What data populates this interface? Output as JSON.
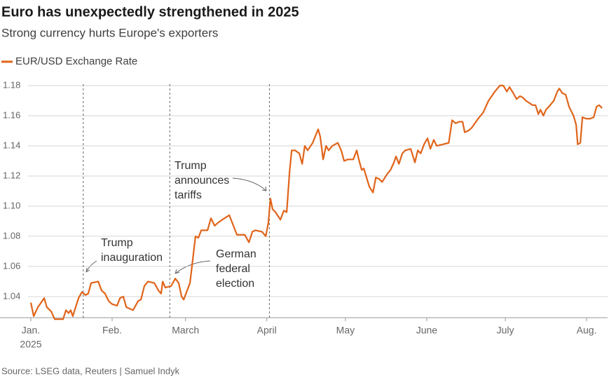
{
  "chart_data": {
    "type": "line",
    "title": "Euro has unexpectedly strengthened in 2025",
    "subtitle": "Strong currency hurts Europe's exporters",
    "source": "Source: LSEG data, Reuters | Samuel Indyk",
    "grid": true,
    "xlim": [
      0,
      220
    ],
    "ylim": [
      1.026,
      1.184
    ],
    "xticks": [
      {
        "value": 0,
        "label": [
          "Jan.",
          "2025"
        ]
      },
      {
        "value": 31,
        "label": [
          "Feb."
        ]
      },
      {
        "value": 59,
        "label": [
          "March"
        ]
      },
      {
        "value": 90,
        "label": [
          "April"
        ]
      },
      {
        "value": 120,
        "label": [
          "May"
        ]
      },
      {
        "value": 151,
        "label": [
          "June"
        ]
      },
      {
        "value": 181,
        "label": [
          "July"
        ]
      },
      {
        "value": 212,
        "label": [
          "Aug."
        ]
      }
    ],
    "yticks": [
      1.04,
      1.06,
      1.08,
      {
        "value": 1.1,
        "label": "1.10"
      },
      1.12,
      1.14,
      1.16,
      1.18
    ],
    "annotations": [
      {
        "x": 20,
        "text": [
          "Trump",
          "inauguration"
        ]
      },
      {
        "x": 53,
        "text": [
          "German",
          "federal",
          "election"
        ]
      },
      {
        "x": 91,
        "text": [
          "Trump",
          "announces",
          "tariffs"
        ]
      }
    ],
    "series": [
      {
        "name": "EUR/USD Exchange Rate",
        "color": "#e0641a",
        "x": [
          0,
          1.1,
          2.7,
          5.1,
          6.1,
          7.8,
          9.1,
          12.3,
          13.4,
          14.4,
          15.2,
          16,
          18.2,
          19.5,
          20.9,
          21.9,
          23,
          25.7,
          27,
          28.3,
          29.7,
          31,
          32.9,
          34,
          35.3,
          36.4,
          39,
          40.9,
          42,
          43.3,
          44.7,
          47.1,
          48.7,
          49.7,
          50.3,
          51.3,
          53.5,
          55.1,
          56.4,
          57.5,
          58.3,
          60.7,
          61.8,
          62.8,
          63.9,
          65,
          67.4,
          68.7,
          70.1,
          71.4,
          73,
          75.7,
          78.6,
          81.6,
          83.2,
          84.5,
          85.6,
          88.2,
          89.6,
          90.6,
          91.4,
          92.2,
          93.3,
          95.2,
          96.5,
          97.6,
          98.7,
          99.5,
          100.8,
          102.4,
          103.5,
          104.5,
          105.6,
          107.5,
          109.6,
          110.4,
          111.5,
          112.6,
          113.6,
          115,
          117.1,
          118.4,
          119.5,
          120.9,
          123,
          124.3,
          125.1,
          126.2,
          127,
          129.1,
          130.5,
          131.6,
          132.9,
          134,
          135.8,
          137.2,
          138.5,
          139.3,
          140.4,
          141.7,
          142.8,
          144.9,
          146.5,
          147.6,
          148.7,
          150,
          151.3,
          152.4,
          153.7,
          154.8,
          157.2,
          159.4,
          160.7,
          162,
          163.4,
          164.7,
          165.5,
          166.8,
          168.2,
          170.6,
          172.5,
          174.6,
          177,
          178.9,
          180.2,
          181.6,
          182.6,
          184,
          185.3,
          186.6,
          187.7,
          188.8,
          191.4,
          192.5,
          193.6,
          194.4,
          195.5,
          196.5,
          198.1,
          199.5,
          200.8,
          201.6,
          202.7,
          204,
          205.3,
          207,
          208,
          208.6,
          209.6,
          210.4,
          211.8,
          213.4,
          214.7,
          215.8,
          216.8,
          217.9
        ],
        "values": [
          1.036,
          1.027,
          1.033,
          1.039,
          1.033,
          1.03,
          1.025,
          1.025,
          1.031,
          1.029,
          1.031,
          1.027,
          1.039,
          1.043,
          1.041,
          1.042,
          1.049,
          1.05,
          1.044,
          1.042,
          1.037,
          1.035,
          1.034,
          1.039,
          1.04,
          1.033,
          1.031,
          1.037,
          1.038,
          1.047,
          1.05,
          1.049,
          1.044,
          1.042,
          1.05,
          1.046,
          1.047,
          1.052,
          1.049,
          1.04,
          1.038,
          1.049,
          1.065,
          1.08,
          1.079,
          1.084,
          1.084,
          1.092,
          1.087,
          1.089,
          1.091,
          1.094,
          1.081,
          1.081,
          1.076,
          1.083,
          1.084,
          1.083,
          1.08,
          1.089,
          1.105,
          1.098,
          1.096,
          1.091,
          1.097,
          1.096,
          1.123,
          1.137,
          1.137,
          1.135,
          1.128,
          1.14,
          1.137,
          1.142,
          1.151,
          1.146,
          1.131,
          1.14,
          1.137,
          1.14,
          1.142,
          1.137,
          1.13,
          1.131,
          1.131,
          1.137,
          1.131,
          1.124,
          1.125,
          1.113,
          1.109,
          1.119,
          1.118,
          1.116,
          1.121,
          1.124,
          1.129,
          1.133,
          1.128,
          1.135,
          1.137,
          1.138,
          1.129,
          1.137,
          1.135,
          1.141,
          1.145,
          1.138,
          1.144,
          1.14,
          1.141,
          1.142,
          1.157,
          1.155,
          1.156,
          1.156,
          1.149,
          1.15,
          1.152,
          1.158,
          1.162,
          1.17,
          1.176,
          1.18,
          1.18,
          1.176,
          1.179,
          1.175,
          1.171,
          1.173,
          1.172,
          1.17,
          1.167,
          1.167,
          1.161,
          1.164,
          1.16,
          1.164,
          1.167,
          1.17,
          1.176,
          1.178,
          1.175,
          1.174,
          1.166,
          1.16,
          1.154,
          1.141,
          1.142,
          1.159,
          1.158,
          1.158,
          1.159,
          1.166,
          1.167,
          1.165
        ]
      }
    ]
  }
}
